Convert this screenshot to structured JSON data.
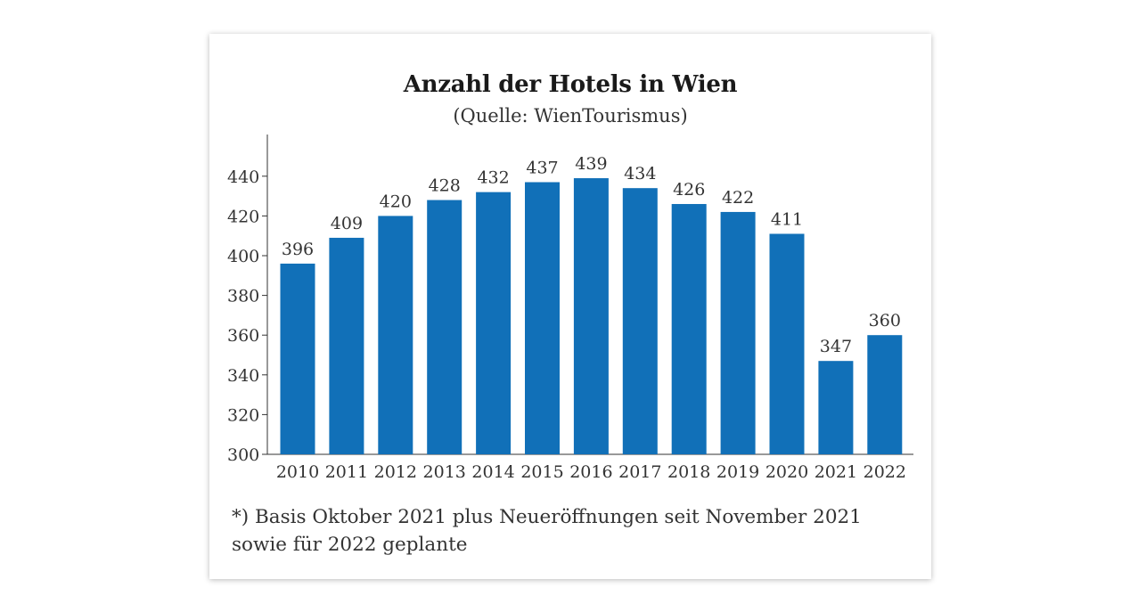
{
  "chart_data": {
    "type": "bar",
    "title": "Anzahl der Hotels in Wien",
    "subtitle": "(Quelle: WienTourismus)",
    "categories": [
      "2010",
      "2011",
      "2012",
      "2013",
      "2014",
      "2015",
      "2016",
      "2017",
      "2018",
      "2019",
      "2020",
      "2021",
      "2022"
    ],
    "values": [
      396,
      409,
      420,
      428,
      432,
      437,
      439,
      434,
      426,
      422,
      411,
      347,
      360
    ],
    "value_labels": [
      "396",
      "409",
      "420",
      "428",
      "432",
      "437",
      "439",
      "434",
      "426",
      "422",
      "411",
      "347",
      "360"
    ],
    "ylim": [
      300,
      460
    ],
    "yticks": [
      300,
      320,
      340,
      360,
      380,
      400,
      420,
      440
    ],
    "ytick_labels": [
      "300",
      "320",
      "340",
      "360",
      "380",
      "400",
      "420",
      "440"
    ],
    "grid": false,
    "bar_color": "#1170b8",
    "footnote_lines": [
      "*) Basis Oktober 2021 plus Neueröffnungen seit November 2021",
      "sowie für 2022 geplante"
    ]
  }
}
